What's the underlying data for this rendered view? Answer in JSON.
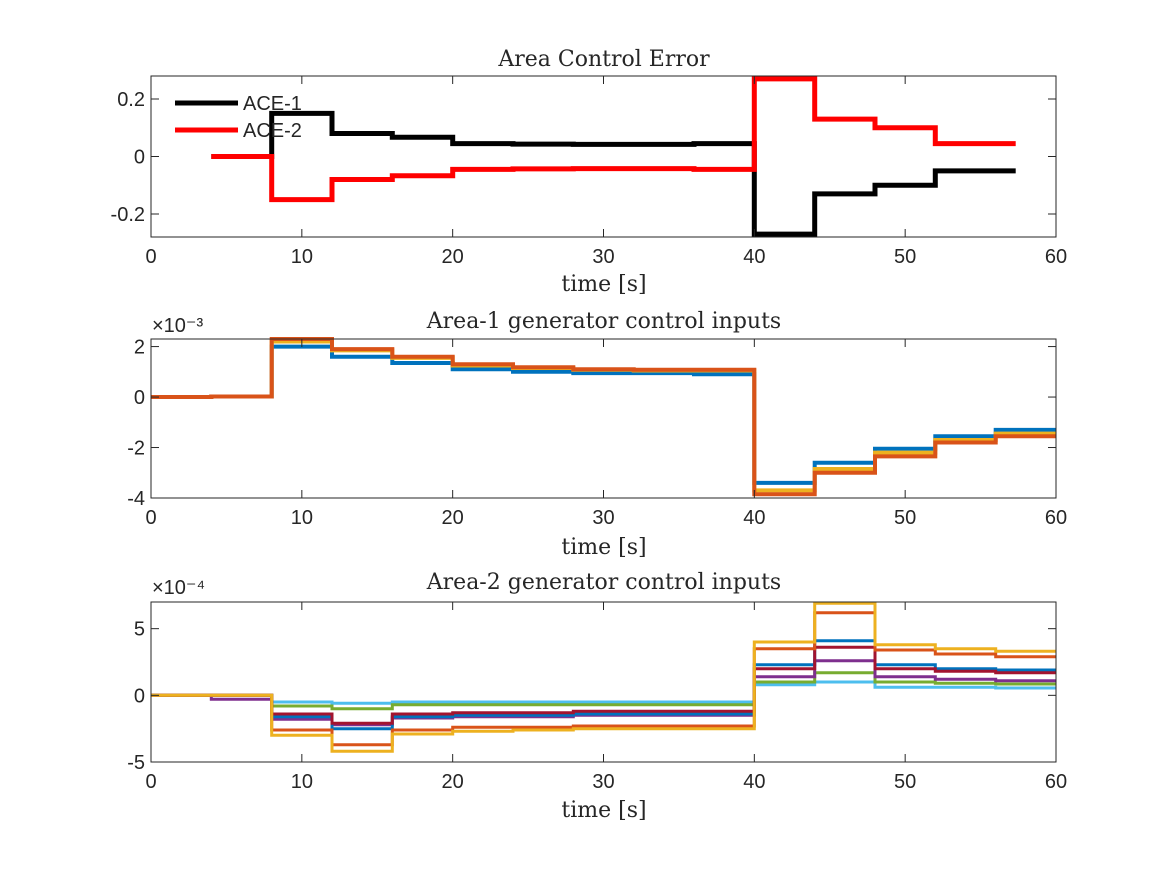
{
  "chart_data": [
    {
      "type": "line",
      "step": true,
      "title": "Area Control Error",
      "xlabel": "time [s]",
      "ylabel": "",
      "xlim": [
        0,
        60
      ],
      "ylim": [
        -0.28,
        0.28
      ],
      "xticks": [
        0,
        10,
        20,
        30,
        40,
        50,
        60
      ],
      "xtick_labels": [
        "0",
        "10",
        "20",
        "30",
        "40",
        "50",
        "60"
      ],
      "yticks": [
        -0.2,
        0,
        0.2
      ],
      "ytick_labels": [
        "-0.2",
        "0",
        "0.2"
      ],
      "exponent_label": "",
      "legend": "top-left",
      "grid": false,
      "series": [
        {
          "name": "ACE-1",
          "color": "#000000",
          "x": [
            4,
            8,
            12,
            16,
            20,
            24,
            28,
            32,
            36,
            40,
            44,
            48,
            52,
            56
          ],
          "values": [
            0,
            0.15,
            0.08,
            0.067,
            0.045,
            0.043,
            0.042,
            0.042,
            0.045,
            -0.27,
            -0.13,
            -0.1,
            -0.05,
            -0.05
          ]
        },
        {
          "name": "ACE-2",
          "color": "#ff0000",
          "x": [
            4,
            8,
            12,
            16,
            20,
            24,
            28,
            32,
            36,
            40,
            44,
            48,
            52,
            56
          ],
          "values": [
            0,
            -0.15,
            -0.08,
            -0.067,
            -0.045,
            -0.043,
            -0.042,
            -0.042,
            -0.045,
            0.27,
            0.13,
            0.1,
            0.045,
            0.045
          ]
        }
      ]
    },
    {
      "type": "line",
      "step": true,
      "title": "Area-1 generator control inputs",
      "xlabel": "time [s]",
      "ylabel": "",
      "xlim": [
        0,
        60
      ],
      "ylim": [
        -4,
        2.3
      ],
      "xticks": [
        0,
        10,
        20,
        30,
        40,
        50,
        60
      ],
      "xtick_labels": [
        "0",
        "10",
        "20",
        "30",
        "40",
        "50",
        "60"
      ],
      "yticks": [
        -4,
        -2,
        0,
        2
      ],
      "ytick_labels": [
        "-4",
        "-2",
        "0",
        "2"
      ],
      "exponent_label": "×10⁻³",
      "grid": false,
      "series": [
        {
          "color": "#0072bd",
          "x": [
            0,
            4,
            8,
            12,
            16,
            20,
            24,
            28,
            32,
            36,
            40,
            44,
            48,
            52,
            56,
            60
          ],
          "values": [
            0,
            0.02,
            2.0,
            1.6,
            1.35,
            1.1,
            1.0,
            0.95,
            0.95,
            0.9,
            -3.4,
            -2.6,
            -2.05,
            -1.55,
            -1.3,
            -1.3
          ]
        },
        {
          "color": "#edb120",
          "x": [
            0,
            4,
            8,
            12,
            16,
            20,
            24,
            28,
            32,
            36,
            40,
            44,
            48,
            52,
            56,
            60
          ],
          "values": [
            0,
            0.02,
            2.2,
            1.85,
            1.55,
            1.25,
            1.15,
            1.08,
            1.05,
            1.05,
            -3.7,
            -2.85,
            -2.2,
            -1.7,
            -1.45,
            -1.45
          ]
        },
        {
          "color": "#d95319",
          "x": [
            0,
            4,
            8,
            12,
            16,
            20,
            24,
            28,
            32,
            36,
            40,
            44,
            48,
            52,
            56,
            60
          ],
          "values": [
            0,
            0.02,
            2.3,
            1.9,
            1.6,
            1.3,
            1.18,
            1.1,
            1.08,
            1.08,
            -3.85,
            -3.0,
            -2.35,
            -1.8,
            -1.55,
            -1.55
          ]
        }
      ]
    },
    {
      "type": "line",
      "step": true,
      "title": "Area-2 generator control inputs",
      "xlabel": "time [s]",
      "ylabel": "",
      "xlim": [
        0,
        60
      ],
      "ylim": [
        -5,
        7
      ],
      "xticks": [
        0,
        10,
        20,
        30,
        40,
        50,
        60
      ],
      "xtick_labels": [
        "0",
        "10",
        "20",
        "30",
        "40",
        "50",
        "60"
      ],
      "yticks": [
        -5,
        0,
        5
      ],
      "ytick_labels": [
        "-5",
        "0",
        "5"
      ],
      "exponent_label": "×10⁻⁴",
      "grid": false,
      "series": [
        {
          "color": "#4dbeee",
          "x": [
            0,
            4,
            8,
            12,
            16,
            20,
            24,
            28,
            32,
            36,
            40,
            44,
            48,
            52,
            56,
            60
          ],
          "values": [
            0,
            0,
            -0.5,
            -0.6,
            -0.5,
            -0.5,
            -0.5,
            -0.5,
            -0.5,
            -0.5,
            0.8,
            1.0,
            0.6,
            0.6,
            0.55,
            0.55
          ]
        },
        {
          "color": "#77ac30",
          "x": [
            0,
            4,
            8,
            12,
            16,
            20,
            24,
            28,
            32,
            36,
            40,
            44,
            48,
            52,
            56,
            60
          ],
          "values": [
            0,
            0,
            -0.8,
            -1.0,
            -0.7,
            -0.7,
            -0.7,
            -0.7,
            -0.7,
            -0.7,
            1.0,
            1.7,
            1.0,
            0.9,
            0.85,
            0.85
          ]
        },
        {
          "color": "#7e2f8e",
          "x": [
            0,
            4,
            8,
            12,
            16,
            20,
            24,
            28,
            32,
            36,
            40,
            44,
            48,
            52,
            56,
            60
          ],
          "values": [
            0,
            -0.3,
            -1.8,
            -2.2,
            -1.7,
            -1.6,
            -1.6,
            -1.5,
            -1.5,
            -1.5,
            1.4,
            2.6,
            1.4,
            1.2,
            1.1,
            1.1
          ]
        },
        {
          "color": "#0072bd",
          "x": [
            0,
            4,
            8,
            12,
            16,
            20,
            24,
            28,
            32,
            36,
            40,
            44,
            48,
            52,
            56,
            60
          ],
          "values": [
            0,
            0,
            -1.6,
            -2.5,
            -1.6,
            -1.5,
            -1.5,
            -1.4,
            -1.4,
            -1.4,
            2.3,
            4.1,
            2.3,
            2.0,
            1.9,
            1.9
          ]
        },
        {
          "color": "#a2142f",
          "x": [
            0,
            4,
            8,
            12,
            16,
            20,
            24,
            28,
            32,
            36,
            40,
            44,
            48,
            52,
            56,
            60
          ],
          "values": [
            0,
            0,
            -1.4,
            -2.1,
            -1.4,
            -1.3,
            -1.3,
            -1.2,
            -1.2,
            -1.2,
            2.0,
            3.6,
            2.0,
            1.8,
            1.7,
            1.7
          ]
        },
        {
          "color": "#d95319",
          "x": [
            0,
            4,
            8,
            12,
            16,
            20,
            24,
            28,
            32,
            36,
            40,
            44,
            48,
            52,
            56,
            60
          ],
          "values": [
            0,
            0,
            -2.6,
            -3.7,
            -2.6,
            -2.4,
            -2.4,
            -2.3,
            -2.3,
            -2.3,
            3.5,
            6.2,
            3.4,
            3.1,
            2.9,
            2.9
          ]
        },
        {
          "color": "#edb120",
          "x": [
            0,
            4,
            8,
            12,
            16,
            20,
            24,
            28,
            32,
            36,
            40,
            44,
            48,
            52,
            56,
            60
          ],
          "values": [
            0,
            0,
            -3.0,
            -4.2,
            -2.9,
            -2.7,
            -2.6,
            -2.5,
            -2.5,
            -2.5,
            4.0,
            6.9,
            3.8,
            3.5,
            3.3,
            3.3
          ]
        }
      ]
    }
  ]
}
